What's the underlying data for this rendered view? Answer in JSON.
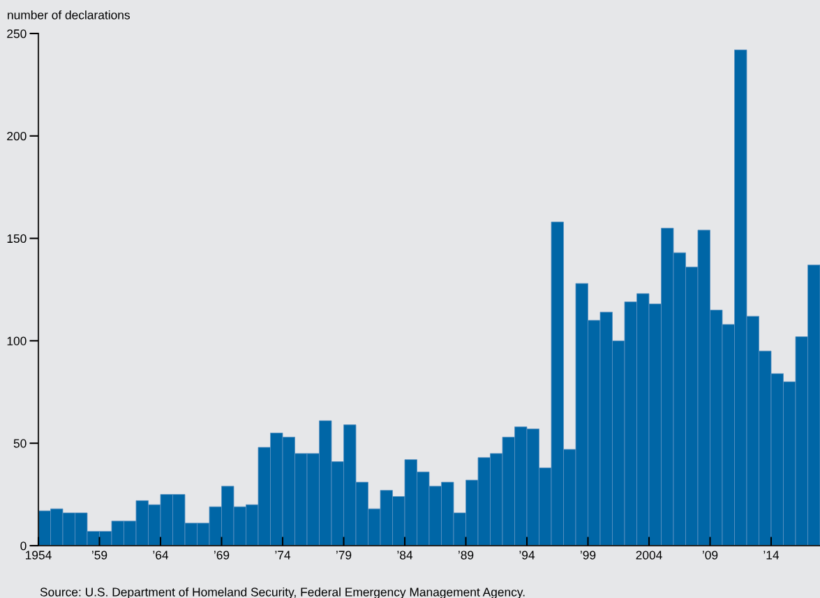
{
  "chart_data": {
    "type": "histogram",
    "ylabel": "number of declarations",
    "bins": [
      1954,
      1955,
      1956,
      1957,
      1958,
      1959,
      1960,
      1961,
      1962,
      1963,
      1964,
      1965,
      1966,
      1967,
      1968,
      1969,
      1970,
      1971,
      1972,
      1973,
      1974,
      1975,
      1976,
      1977,
      1978,
      1979,
      1980,
      1981,
      1982,
      1983,
      1984,
      1985,
      1986,
      1987,
      1988,
      1989,
      1990,
      1991,
      1992,
      1993,
      1994,
      1995,
      1996,
      1997,
      1998,
      1999,
      2000,
      2001,
      2002,
      2003,
      2004,
      2005,
      2006,
      2007,
      2008,
      2009,
      2010,
      2011,
      2012,
      2013,
      2014,
      2015,
      2016,
      2017,
      2018
    ],
    "values": [
      17,
      18,
      16,
      16,
      7,
      7,
      12,
      12,
      22,
      20,
      25,
      25,
      11,
      11,
      19,
      29,
      19,
      20,
      48,
      55,
      53,
      45,
      45,
      61,
      41,
      59,
      31,
      18,
      27,
      24,
      42,
      36,
      29,
      31,
      16,
      32,
      43,
      45,
      53,
      58,
      57,
      38,
      158,
      47,
      128,
      110,
      114,
      100,
      119,
      123,
      118,
      155,
      143,
      136,
      154,
      115,
      108,
      242,
      112,
      95,
      84,
      80,
      102,
      137
    ],
    "color": "#0066a6",
    "xlim": [
      1954,
      2018
    ],
    "xticks": [
      1954,
      {
        "value": 1959,
        "label": "’59"
      },
      {
        "value": 1964,
        "label": "’64"
      },
      {
        "value": 1969,
        "label": "’69"
      },
      {
        "value": 1974,
        "label": "’74"
      },
      {
        "value": 1979,
        "label": "’79"
      },
      {
        "value": 1984,
        "label": "’84"
      },
      {
        "value": 1989,
        "label": "’89"
      },
      {
        "value": 1994,
        "label": "’94"
      },
      {
        "value": 1999,
        "label": "’99"
      },
      2004,
      {
        "value": 2009,
        "label": "’09"
      },
      {
        "value": 2014,
        "label": "’14"
      }
    ],
    "ylim": [
      0,
      250
    ],
    "yticks": [
      0,
      50,
      100,
      150,
      200,
      250
    ],
    "grid": false,
    "annotations": [
      "Source: U.S. Department of Homeland Security, Federal Emergency Management Agency."
    ]
  }
}
